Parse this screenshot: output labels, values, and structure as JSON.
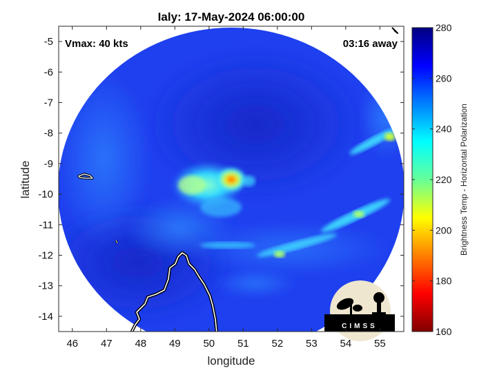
{
  "title": "Ialy: 17-May-2024 06:00:00",
  "annotations": {
    "vmax": "Vmax: 40 kts",
    "time_away": "03:16 away"
  },
  "axes": {
    "xlabel": "longitude",
    "ylabel": "latitude",
    "xlim": [
      45.6,
      55.7
    ],
    "ylim": [
      -14.5,
      -4.5
    ],
    "xticks": [
      "46",
      "47",
      "48",
      "49",
      "50",
      "51",
      "52",
      "53",
      "54",
      "55"
    ],
    "yticks": [
      "-5",
      "-6",
      "-7",
      "-8",
      "-9",
      "-10",
      "-11",
      "-12",
      "-13",
      "-14"
    ]
  },
  "colorbar": {
    "label": "Brightness Temp - Horizontal Polarization",
    "ticks": [
      "280",
      "260",
      "240",
      "220",
      "200",
      "180",
      "160"
    ],
    "range": [
      160,
      280
    ],
    "colormap": "jet"
  },
  "logo": {
    "text": "CIMSS"
  },
  "scene": {
    "background_color": "#1f40ef",
    "swath_center_lonlat": [
      50.5,
      -9.7
    ],
    "warm_core_lonlat": [
      50.7,
      -9.55
    ],
    "land_outline_color": "#ffffff"
  }
}
